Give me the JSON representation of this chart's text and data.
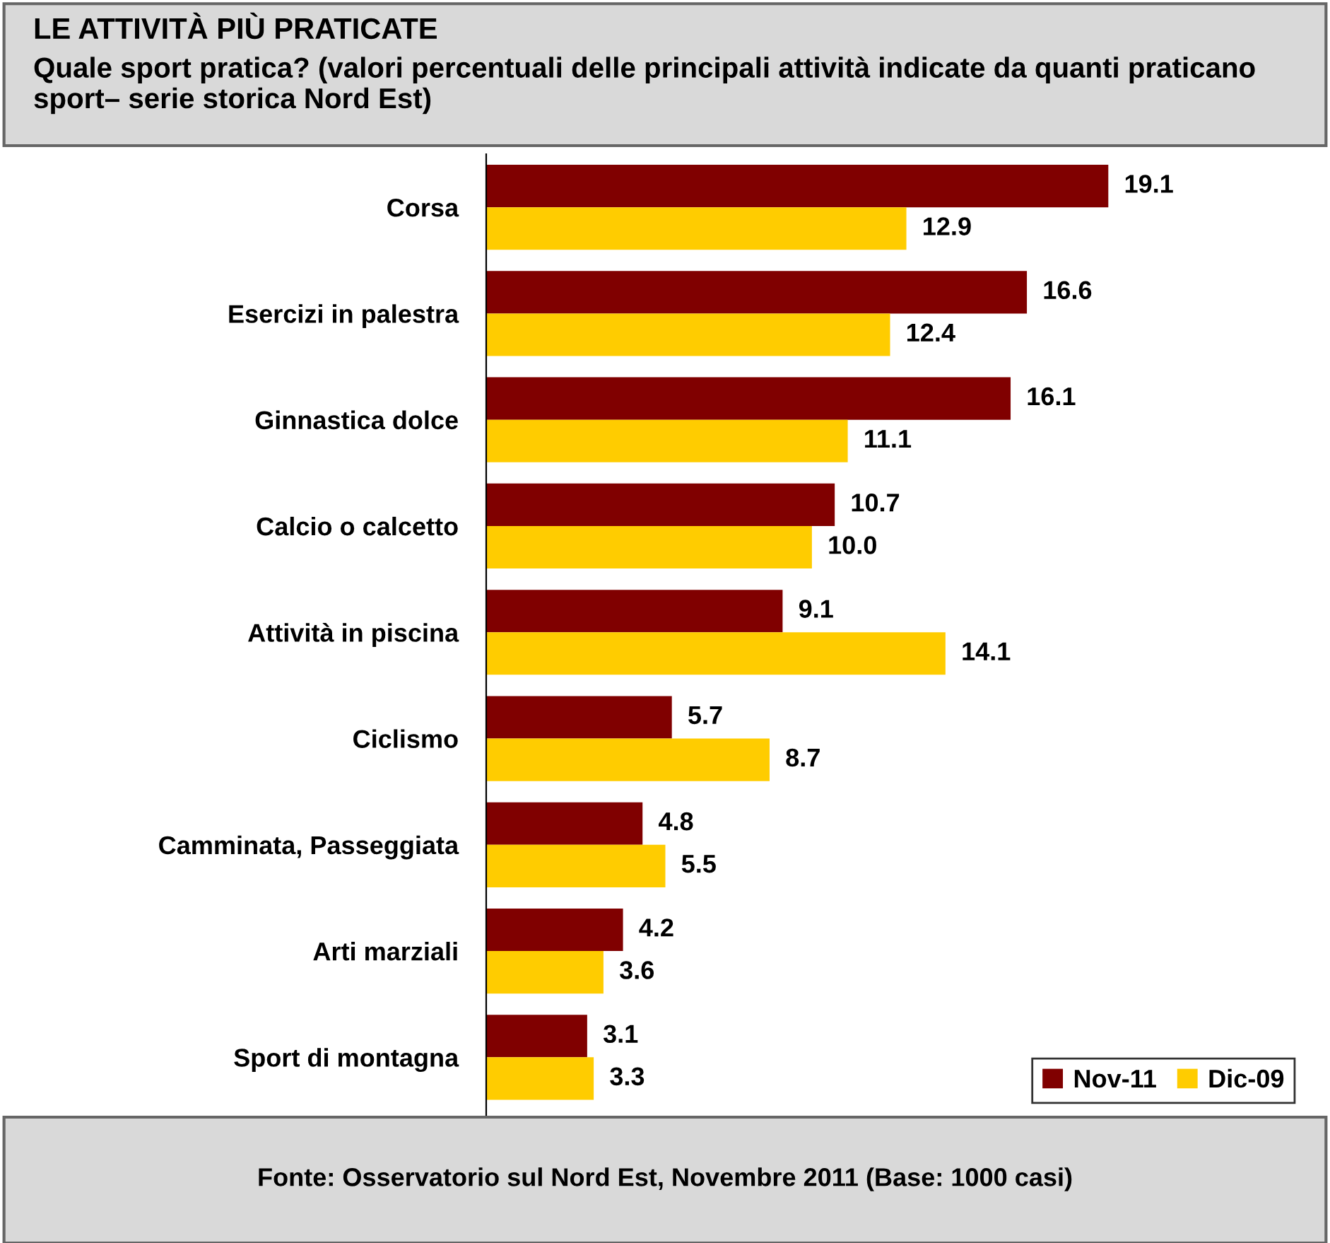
{
  "chart_data": {
    "type": "bar",
    "orientation": "horizontal",
    "title": "LE ATTIVITÀ PIÙ PRATICATE",
    "subtitle": "Quale sport pratica? (valori percentuali delle principali attività indicate da quanti praticano sport– serie storica Nord Est)",
    "categories": [
      "Corsa",
      "Esercizi in palestra",
      "Ginnastica dolce",
      "Calcio o calcetto",
      "Attività in piscina",
      "Ciclismo",
      "Camminata, Passeggiata",
      "Arti marziali",
      "Sport di montagna"
    ],
    "series": [
      {
        "name": "Nov-11",
        "color": "#800000",
        "values": [
          19.1,
          16.6,
          16.1,
          10.7,
          9.1,
          5.7,
          4.8,
          4.2,
          3.1
        ],
        "value_labels": [
          "19.1",
          "16.6",
          "16.1",
          "10.7",
          "9.1",
          "5.7",
          "4.8",
          "4.2",
          "3.1"
        ]
      },
      {
        "name": "Dic-09",
        "color": "#ffcc00",
        "values": [
          12.9,
          12.4,
          11.1,
          10.0,
          14.1,
          8.7,
          5.5,
          3.6,
          3.3
        ],
        "value_labels": [
          "12.9",
          "12.4",
          "11.1",
          "10.0",
          "14.1",
          "8.7",
          "5.5",
          "3.6",
          "3.3"
        ]
      }
    ],
    "legend": "bottom right",
    "grid": false,
    "annotations": [
      "Fonte: Osservatorio sul Nord Est, Novembre 2011 (Base: 1000 casi)"
    ]
  }
}
